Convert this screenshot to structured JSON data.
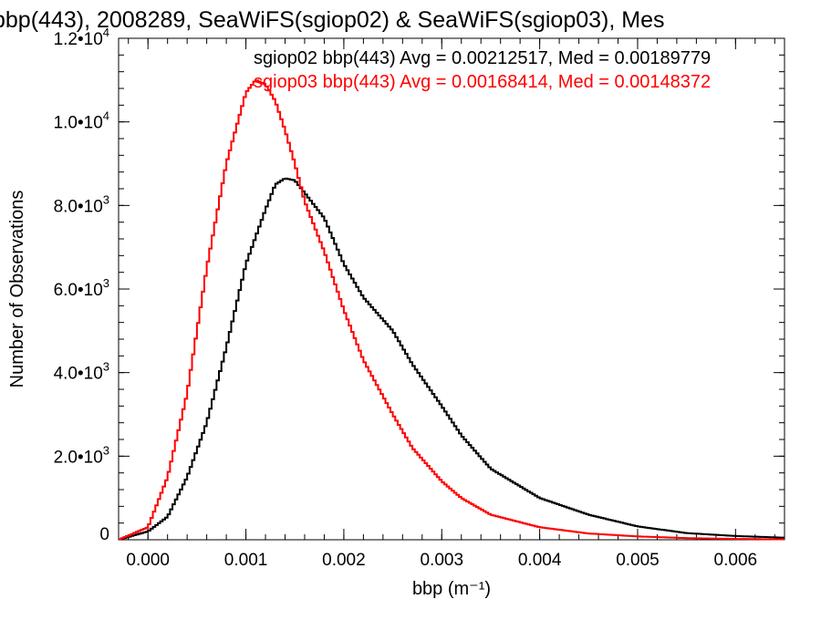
{
  "chart_data": {
    "type": "step-histogram",
    "title": "bbp(443), 2008289, SeaWiFS(sgiop02) & SeaWiFS(sgiop03), Mes",
    "xlabel": "bbp (m⁻¹)",
    "ylabel": "Number of Observations",
    "xlim": [
      -0.0003,
      0.0065
    ],
    "ylim": [
      0,
      12000
    ],
    "x_ticks": [
      "0.000",
      "0.001",
      "0.002",
      "0.003",
      "0.004",
      "0.005",
      "0.006"
    ],
    "y_ticks": [
      {
        "value": 0,
        "mantissa": "0",
        "exponent": ""
      },
      {
        "value": 2000,
        "mantissa": "2.0•10",
        "exponent": "3"
      },
      {
        "value": 4000,
        "mantissa": "4.0•10",
        "exponent": "3"
      },
      {
        "value": 6000,
        "mantissa": "6.0•10",
        "exponent": "3"
      },
      {
        "value": 8000,
        "mantissa": "8.0•10",
        "exponent": "3"
      },
      {
        "value": 10000,
        "mantissa": "1.0•10",
        "exponent": "4"
      },
      {
        "value": 12000,
        "mantissa": "1.2•10",
        "exponent": "4"
      }
    ],
    "series": [
      {
        "name": "sgiop02 bbp(443) Avg = 0.00212517, Med = 0.00189779",
        "color": "#000000",
        "x": [
          -0.0003,
          0.0,
          0.0002,
          0.0004,
          0.0006,
          0.0008,
          0.001,
          0.0012,
          0.0013,
          0.0014,
          0.0015,
          0.0016,
          0.0017,
          0.0018,
          0.002,
          0.0022,
          0.0025,
          0.0027,
          0.003,
          0.0032,
          0.0035,
          0.004,
          0.0045,
          0.005,
          0.0055,
          0.006,
          0.0065
        ],
        "y": [
          0,
          200,
          550,
          1500,
          2800,
          4600,
          6600,
          7900,
          8500,
          8650,
          8600,
          8300,
          8000,
          7700,
          6600,
          5800,
          5000,
          4200,
          3200,
          2500,
          1700,
          1000,
          600,
          320,
          160,
          90,
          50
        ]
      },
      {
        "name": "sgiop03 bbp(443) Avg = 0.00168414, Med = 0.00148372",
        "color": "#ff0000",
        "x": [
          -0.0003,
          0.0,
          0.0002,
          0.0004,
          0.0006,
          0.0008,
          0.001,
          0.0011,
          0.0012,
          0.0013,
          0.0014,
          0.0015,
          0.0016,
          0.0018,
          0.002,
          0.0022,
          0.0025,
          0.0027,
          0.003,
          0.0032,
          0.0035,
          0.004,
          0.0045,
          0.005,
          0.0055,
          0.006,
          0.0065
        ],
        "y": [
          0,
          300,
          1500,
          3500,
          6500,
          9000,
          10700,
          11000,
          10900,
          10500,
          9800,
          9000,
          8100,
          6900,
          5500,
          4300,
          3000,
          2200,
          1400,
          1000,
          600,
          300,
          150,
          80,
          40,
          20,
          10
        ]
      }
    ]
  }
}
